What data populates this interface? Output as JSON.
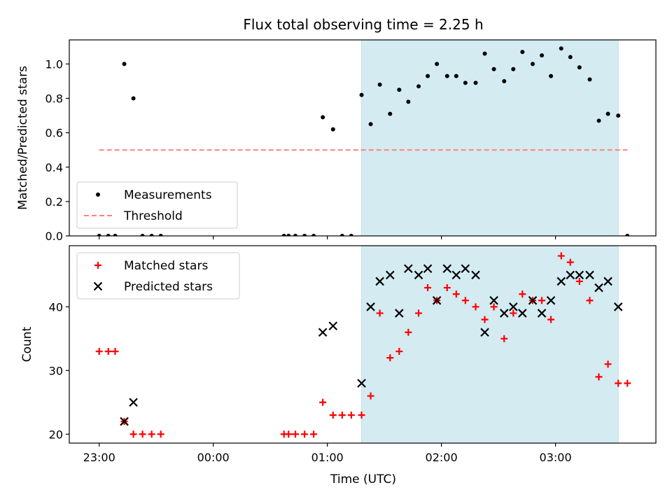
{
  "chart_data": {
    "title": "Flux total observing time = 2.25 h",
    "xlabel": "Time (UTC)",
    "x_ticks": [
      "23:00",
      "00:00",
      "01:00",
      "02:00",
      "03:00"
    ],
    "x_unit": "hours from 23:00 UTC",
    "highlight_span": {
      "x_start": 2.3,
      "x_end": 4.55,
      "color": "#d4ebf2"
    },
    "panels": [
      {
        "type": "scatter",
        "ylabel": "Matched/Predicted stars",
        "ylim": [
          0,
          1.14
        ],
        "yticks": [
          0.0,
          0.2,
          0.4,
          0.6,
          0.8,
          1.0
        ],
        "ytick_labels": [
          "0.0",
          "0.2",
          "0.4",
          "0.6",
          "0.8",
          "1.0"
        ],
        "legend_position": "lower-left",
        "series": [
          {
            "name": "Measurements",
            "marker": "dot",
            "color": "#000000",
            "points": [
              [
                0.0,
                0
              ],
              [
                0.08,
                0
              ],
              [
                0.14,
                0
              ],
              [
                0.22,
                1.0
              ],
              [
                0.3,
                0.8
              ],
              [
                0.38,
                0
              ],
              [
                0.46,
                0
              ],
              [
                0.54,
                0
              ],
              [
                1.62,
                0
              ],
              [
                1.66,
                0
              ],
              [
                1.72,
                0
              ],
              [
                1.8,
                0
              ],
              [
                1.88,
                0
              ],
              [
                1.96,
                0.69
              ],
              [
                2.05,
                0.62
              ],
              [
                2.13,
                0
              ],
              [
                2.21,
                0
              ],
              [
                2.3,
                0.82
              ],
              [
                2.38,
                0.65
              ],
              [
                2.46,
                0.88
              ],
              [
                2.55,
                0.71
              ],
              [
                2.63,
                0.85
              ],
              [
                2.71,
                0.78
              ],
              [
                2.8,
                0.87
              ],
              [
                2.88,
                0.93
              ],
              [
                2.96,
                1.0
              ],
              [
                3.05,
                0.93
              ],
              [
                3.13,
                0.93
              ],
              [
                3.21,
                0.89
              ],
              [
                3.3,
                0.89
              ],
              [
                3.38,
                1.06
              ],
              [
                3.46,
                0.97
              ],
              [
                3.55,
                0.9
              ],
              [
                3.63,
                0.97
              ],
              [
                3.71,
                1.07
              ],
              [
                3.8,
                1.0
              ],
              [
                3.88,
                1.05
              ],
              [
                3.96,
                0.93
              ],
              [
                4.05,
                1.09
              ],
              [
                4.13,
                1.04
              ],
              [
                4.21,
                0.98
              ],
              [
                4.3,
                0.91
              ],
              [
                4.38,
                0.67
              ],
              [
                4.46,
                0.71
              ],
              [
                4.55,
                0.7
              ],
              [
                4.63,
                0
              ]
            ]
          },
          {
            "name": "Threshold",
            "marker": "dashed-line",
            "color": "#ff8080",
            "points": [
              [
                0.0,
                0.5
              ],
              [
                4.63,
                0.5
              ]
            ]
          }
        ]
      },
      {
        "type": "scatter",
        "ylabel": "Count",
        "ylim": [
          18.6,
          49.6
        ],
        "yticks": [
          20,
          30,
          40
        ],
        "ytick_labels": [
          "20",
          "30",
          "40"
        ],
        "legend_position": "upper-left",
        "series": [
          {
            "name": "Matched stars",
            "marker": "plus",
            "color": "#ff0000",
            "points": [
              [
                0.0,
                33
              ],
              [
                0.08,
                33
              ],
              [
                0.14,
                33
              ],
              [
                0.22,
                22
              ],
              [
                0.3,
                20
              ],
              [
                0.38,
                20
              ],
              [
                0.46,
                20
              ],
              [
                0.54,
                20
              ],
              [
                1.62,
                20
              ],
              [
                1.66,
                20
              ],
              [
                1.72,
                20
              ],
              [
                1.8,
                20
              ],
              [
                1.88,
                20
              ],
              [
                1.96,
                25
              ],
              [
                2.05,
                23
              ],
              [
                2.13,
                23
              ],
              [
                2.21,
                23
              ],
              [
                2.3,
                23
              ],
              [
                2.38,
                26
              ],
              [
                2.46,
                39
              ],
              [
                2.55,
                32
              ],
              [
                2.63,
                33
              ],
              [
                2.71,
                36
              ],
              [
                2.8,
                39
              ],
              [
                2.88,
                43
              ],
              [
                2.96,
                41
              ],
              [
                3.05,
                43
              ],
              [
                3.13,
                42
              ],
              [
                3.21,
                41
              ],
              [
                3.3,
                40
              ],
              [
                3.38,
                38
              ],
              [
                3.46,
                40
              ],
              [
                3.55,
                35
              ],
              [
                3.63,
                39
              ],
              [
                3.71,
                42
              ],
              [
                3.8,
                41
              ],
              [
                3.88,
                41
              ],
              [
                3.96,
                38
              ],
              [
                4.05,
                48
              ],
              [
                4.13,
                47
              ],
              [
                4.21,
                44
              ],
              [
                4.3,
                41
              ],
              [
                4.38,
                29
              ],
              [
                4.46,
                31
              ],
              [
                4.55,
                28
              ],
              [
                4.63,
                28
              ]
            ]
          },
          {
            "name": "Predicted stars",
            "marker": "x",
            "color": "#000000",
            "points": [
              [
                0.22,
                22
              ],
              [
                0.3,
                25
              ],
              [
                1.96,
                36
              ],
              [
                2.05,
                37
              ],
              [
                2.3,
                28
              ],
              [
                2.38,
                40
              ],
              [
                2.46,
                44
              ],
              [
                2.55,
                45
              ],
              [
                2.63,
                39
              ],
              [
                2.71,
                46
              ],
              [
                2.8,
                45
              ],
              [
                2.88,
                46
              ],
              [
                2.96,
                41
              ],
              [
                3.05,
                46
              ],
              [
                3.13,
                45
              ],
              [
                3.21,
                46
              ],
              [
                3.3,
                45
              ],
              [
                3.38,
                36
              ],
              [
                3.46,
                41
              ],
              [
                3.55,
                39
              ],
              [
                3.63,
                40
              ],
              [
                3.71,
                39
              ],
              [
                3.8,
                41
              ],
              [
                3.88,
                39
              ],
              [
                3.96,
                41
              ],
              [
                4.05,
                44
              ],
              [
                4.13,
                45
              ],
              [
                4.21,
                45
              ],
              [
                4.3,
                45
              ],
              [
                4.38,
                43
              ],
              [
                4.46,
                44
              ],
              [
                4.55,
                40
              ]
            ]
          }
        ]
      }
    ]
  }
}
